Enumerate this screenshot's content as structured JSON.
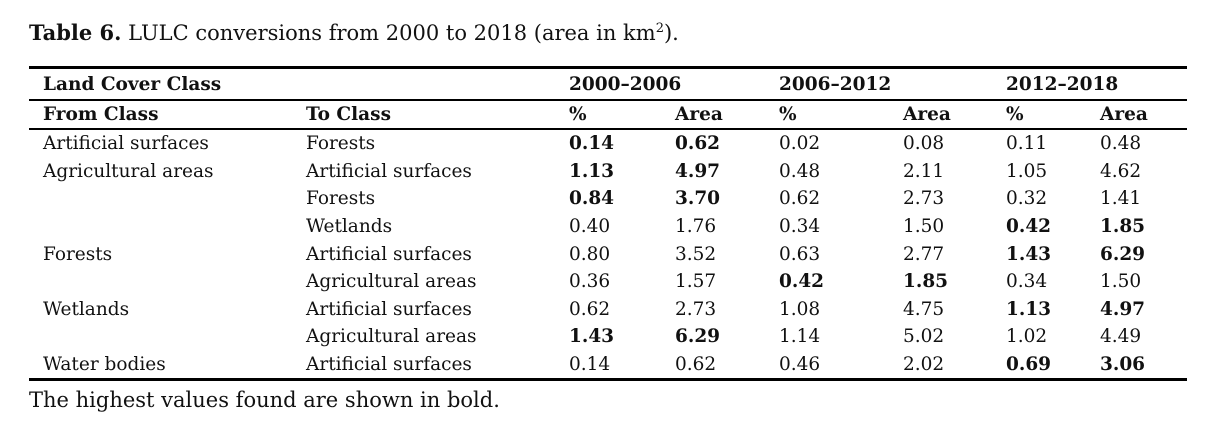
{
  "caption": {
    "label": "Table 6.",
    "text_before": " LULC conversions from 2000 to 2018 (area in km",
    "superscript": "2",
    "text_after": ")."
  },
  "header": {
    "group_label": "Land Cover Class",
    "periods": [
      "2000–2006",
      "2006–2012",
      "2012–2018"
    ],
    "from_label": "From Class",
    "to_label": "To Class",
    "pct_label": "%",
    "area_label": "Area"
  },
  "rows": [
    {
      "from": "Artificial surfaces",
      "to": "Forests",
      "values": [
        "0.14",
        "0.62",
        "0.02",
        "0.08",
        "0.11",
        "0.48"
      ],
      "bold": [
        true,
        true,
        false,
        false,
        false,
        false
      ]
    },
    {
      "from": "Agricultural areas",
      "to": "Artificial surfaces",
      "values": [
        "1.13",
        "4.97",
        "0.48",
        "2.11",
        "1.05",
        "4.62"
      ],
      "bold": [
        true,
        true,
        false,
        false,
        false,
        false
      ]
    },
    {
      "from": "",
      "to": "Forests",
      "values": [
        "0.84",
        "3.70",
        "0.62",
        "2.73",
        "0.32",
        "1.41"
      ],
      "bold": [
        true,
        true,
        false,
        false,
        false,
        false
      ]
    },
    {
      "from": "",
      "to": "Wetlands",
      "values": [
        "0.40",
        "1.76",
        "0.34",
        "1.50",
        "0.42",
        "1.85"
      ],
      "bold": [
        false,
        false,
        false,
        false,
        true,
        true
      ]
    },
    {
      "from": "Forests",
      "to": "Artificial surfaces",
      "values": [
        "0.80",
        "3.52",
        "0.63",
        "2.77",
        "1.43",
        "6.29"
      ],
      "bold": [
        false,
        false,
        false,
        false,
        true,
        true
      ]
    },
    {
      "from": "",
      "to": "Agricultural areas",
      "values": [
        "0.36",
        "1.57",
        "0.42",
        "1.85",
        "0.34",
        "1.50"
      ],
      "bold": [
        false,
        false,
        true,
        true,
        false,
        false
      ]
    },
    {
      "from": "Wetlands",
      "to": "Artificial surfaces",
      "values": [
        "0.62",
        "2.73",
        "1.08",
        "4.75",
        "1.13",
        "4.97"
      ],
      "bold": [
        false,
        false,
        false,
        false,
        true,
        true
      ]
    },
    {
      "from": "",
      "to": "Agricultural areas",
      "values": [
        "1.43",
        "6.29",
        "1.14",
        "5.02",
        "1.02",
        "4.49"
      ],
      "bold": [
        true,
        true,
        false,
        false,
        false,
        false
      ]
    },
    {
      "from": "Water bodies",
      "to": "Artificial surfaces",
      "values": [
        "0.14",
        "0.62",
        "0.46",
        "2.02",
        "0.69",
        "3.06"
      ],
      "bold": [
        false,
        false,
        false,
        false,
        true,
        true
      ]
    }
  ],
  "footnote": "The highest values found are shown in bold."
}
